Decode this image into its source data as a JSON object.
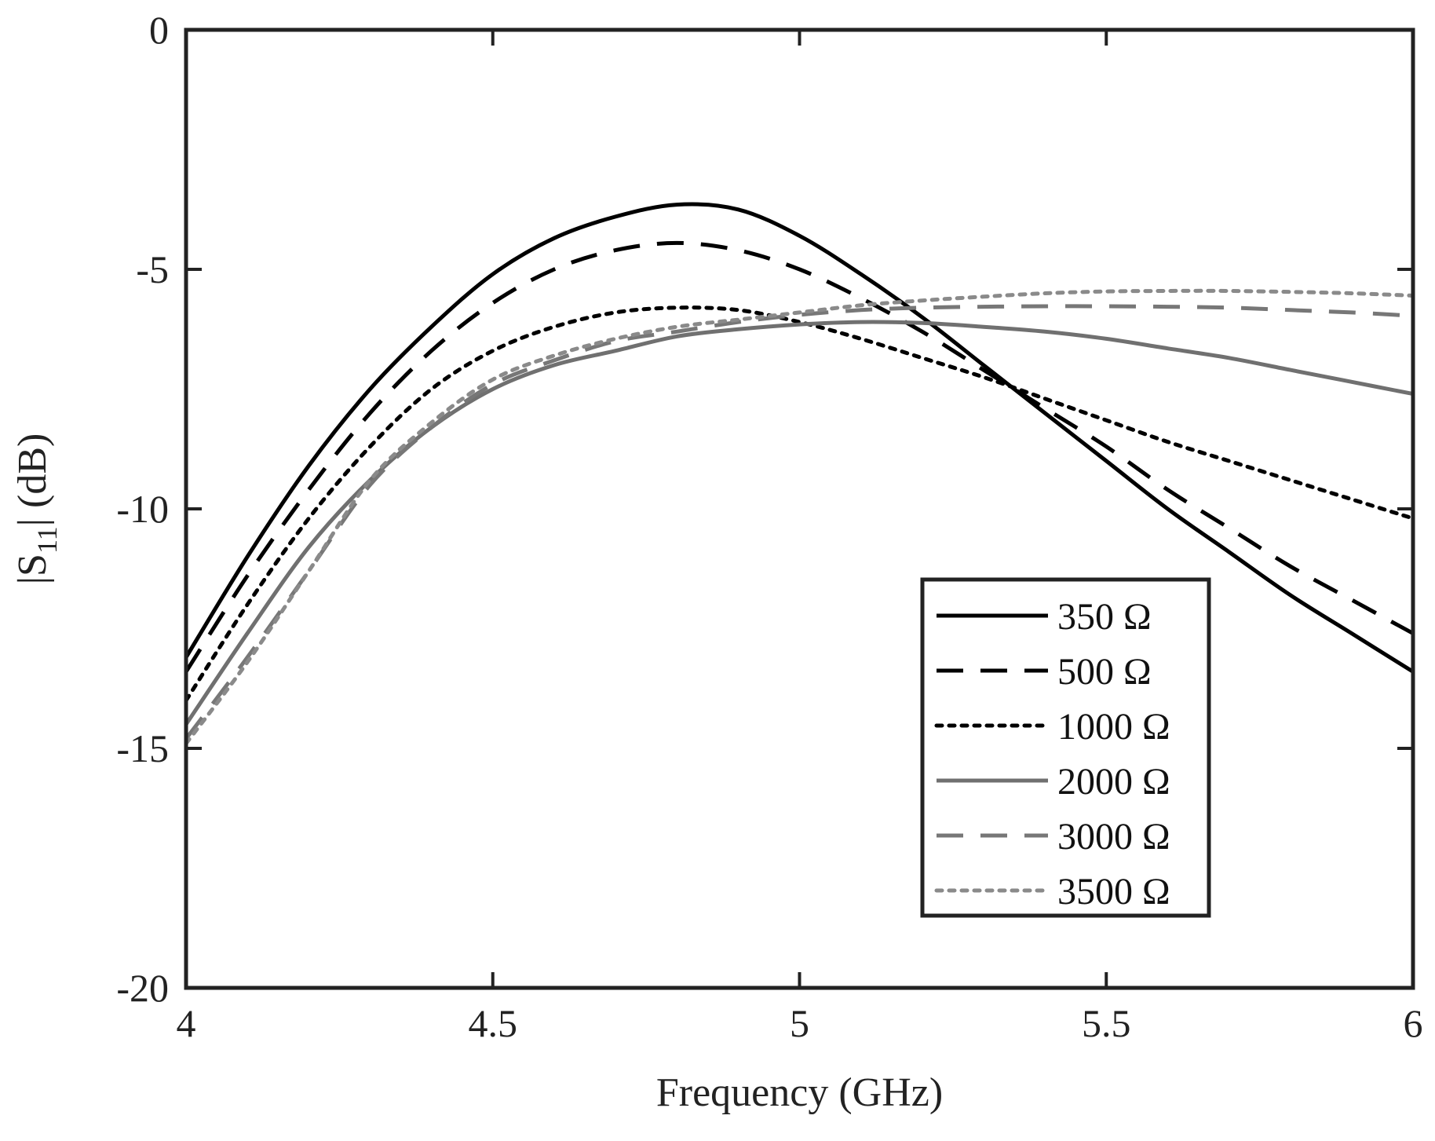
{
  "chart_data": {
    "type": "line",
    "title": "",
    "xlabel": "Frequency (GHz)",
    "ylabel_parts": [
      "|S",
      "11",
      "| (dB)"
    ],
    "xlim": [
      4,
      6
    ],
    "ylim": [
      -20,
      0
    ],
    "xticks": [
      4,
      4.5,
      5,
      5.5,
      6
    ],
    "xtick_labels": [
      "4",
      "4.5",
      "5",
      "5.5",
      "6"
    ],
    "yticks": [
      0,
      -5,
      -10,
      -15,
      -20
    ],
    "ytick_labels": [
      "0",
      "-5",
      "-10",
      "-15",
      "-20"
    ],
    "grid": false,
    "legend_position": "lower-right",
    "series": [
      {
        "name": "350 Ω",
        "color": "#000000",
        "dash": "solid",
        "x": [
          4.0,
          4.1,
          4.2,
          4.3,
          4.4,
          4.5,
          4.6,
          4.7,
          4.8,
          4.9,
          5.0,
          5.1,
          5.2,
          5.3,
          5.4,
          5.5,
          5.6,
          5.7,
          5.8,
          5.9,
          6.0
        ],
        "y": [
          -13.1,
          -11.0,
          -9.1,
          -7.5,
          -6.2,
          -5.1,
          -4.35,
          -3.9,
          -3.65,
          -3.75,
          -4.3,
          -5.1,
          -6.0,
          -7.0,
          -8.0,
          -9.0,
          -10.0,
          -10.9,
          -11.8,
          -12.6,
          -13.4
        ]
      },
      {
        "name": "500 Ω",
        "color": "#000000",
        "dash": "dashed",
        "x": [
          4.0,
          4.1,
          4.2,
          4.3,
          4.4,
          4.5,
          4.6,
          4.7,
          4.8,
          4.9,
          5.0,
          5.1,
          5.2,
          5.3,
          5.4,
          5.5,
          5.6,
          5.7,
          5.8,
          5.9,
          6.0
        ],
        "y": [
          -13.4,
          -11.4,
          -9.6,
          -8.0,
          -6.7,
          -5.7,
          -5.0,
          -4.6,
          -4.45,
          -4.6,
          -5.0,
          -5.6,
          -6.3,
          -7.1,
          -7.9,
          -8.7,
          -9.6,
          -10.4,
          -11.2,
          -11.9,
          -12.6
        ]
      },
      {
        "name": "1000 Ω",
        "color": "#000000",
        "dash": "dotted",
        "x": [
          4.0,
          4.1,
          4.2,
          4.3,
          4.4,
          4.5,
          4.6,
          4.7,
          4.8,
          4.9,
          5.0,
          5.1,
          5.2,
          5.3,
          5.4,
          5.5,
          5.6,
          5.7,
          5.8,
          5.9,
          6.0
        ],
        "y": [
          -14.0,
          -12.0,
          -10.2,
          -8.7,
          -7.5,
          -6.7,
          -6.2,
          -5.9,
          -5.8,
          -5.85,
          -6.1,
          -6.45,
          -6.85,
          -7.25,
          -7.7,
          -8.15,
          -8.6,
          -9.0,
          -9.4,
          -9.8,
          -10.2
        ]
      },
      {
        "name": "2000 Ω",
        "color": "#707070",
        "dash": "solid",
        "x": [
          4.0,
          4.1,
          4.2,
          4.3,
          4.4,
          4.5,
          4.6,
          4.7,
          4.8,
          4.9,
          5.0,
          5.1,
          5.2,
          5.3,
          5.4,
          5.5,
          5.6,
          5.7,
          5.8,
          5.9,
          6.0
        ],
        "y": [
          -14.5,
          -12.6,
          -10.8,
          -9.4,
          -8.3,
          -7.5,
          -7.0,
          -6.7,
          -6.4,
          -6.25,
          -6.15,
          -6.1,
          -6.12,
          -6.2,
          -6.3,
          -6.45,
          -6.65,
          -6.85,
          -7.1,
          -7.35,
          -7.6
        ]
      },
      {
        "name": "3000 Ω",
        "color": "#777777",
        "dash": "dashed",
        "x": [
          4.0,
          4.1,
          4.2,
          4.3,
          4.4,
          4.5,
          4.6,
          4.7,
          4.8,
          4.9,
          5.0,
          5.1,
          5.2,
          5.3,
          5.4,
          5.5,
          5.6,
          5.7,
          5.8,
          5.9,
          6.0
        ],
        "y": [
          -14.8,
          -13.1,
          -11.3,
          -9.5,
          -8.3,
          -7.4,
          -6.9,
          -6.5,
          -6.3,
          -6.1,
          -5.95,
          -5.85,
          -5.8,
          -5.78,
          -5.77,
          -5.77,
          -5.78,
          -5.8,
          -5.85,
          -5.9,
          -5.97
        ]
      },
      {
        "name": "3500 Ω",
        "color": "#8a8a8a",
        "dash": "dotted",
        "x": [
          4.0,
          4.1,
          4.2,
          4.3,
          4.4,
          4.5,
          4.6,
          4.7,
          4.8,
          4.9,
          5.0,
          5.1,
          5.2,
          5.3,
          5.4,
          5.5,
          5.6,
          5.7,
          5.8,
          5.9,
          6.0
        ],
        "y": [
          -14.9,
          -13.2,
          -11.3,
          -9.4,
          -8.2,
          -7.3,
          -6.8,
          -6.45,
          -6.2,
          -6.05,
          -5.9,
          -5.75,
          -5.65,
          -5.57,
          -5.5,
          -5.46,
          -5.45,
          -5.45,
          -5.47,
          -5.5,
          -5.55
        ]
      }
    ]
  }
}
